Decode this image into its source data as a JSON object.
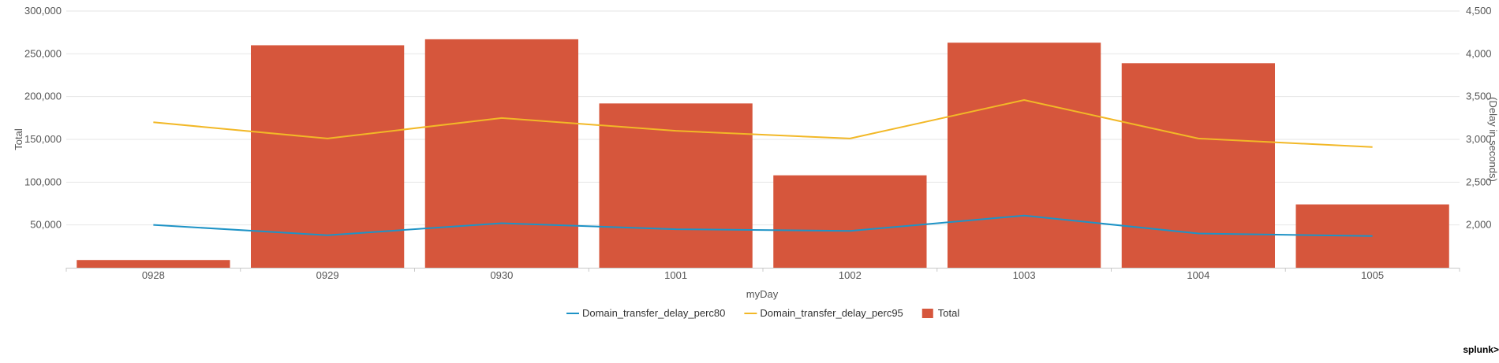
{
  "app": {
    "brand": "splunk>"
  },
  "chart_data": {
    "type": "bar",
    "categories": [
      "0928",
      "0929",
      "0930",
      "1001",
      "1002",
      "1003",
      "1004",
      "1005"
    ],
    "xlabel": "myDay",
    "ylabel": "Total",
    "y2label": "(Delay in seconds)",
    "ylim": [
      0,
      300000
    ],
    "y2lim": [
      1500,
      4500
    ],
    "yticks": [
      "50,000",
      "100,000",
      "150,000",
      "200,000",
      "250,000",
      "300,000"
    ],
    "y2ticks": [
      "2,000",
      "2,500",
      "3,000",
      "3,500",
      "4,000",
      "4,500"
    ],
    "grid": true,
    "legend_position": "bottom",
    "series": [
      {
        "name": "Total",
        "type": "bar",
        "axis": "left",
        "color": "#d6563c",
        "values": [
          9000,
          260000,
          267000,
          192000,
          108000,
          263000,
          239000,
          74000
        ]
      },
      {
        "name": "Domain_transfer_delay_perc80",
        "type": "line",
        "axis": "right",
        "color": "#1e93c6",
        "values": [
          2000,
          1880,
          2020,
          1950,
          1930,
          2110,
          1900,
          1870
        ]
      },
      {
        "name": "Domain_transfer_delay_perc95",
        "type": "line",
        "axis": "right",
        "color": "#f2b827",
        "values": [
          3200,
          3010,
          3250,
          3100,
          3010,
          3460,
          3010,
          2910
        ]
      }
    ],
    "legend_order": [
      "Domain_transfer_delay_perc80",
      "Domain_transfer_delay_perc95",
      "Total"
    ]
  }
}
